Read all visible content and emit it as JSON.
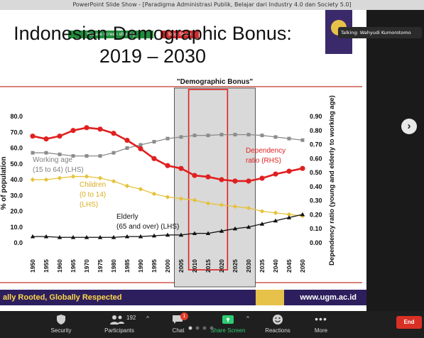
{
  "window": {
    "title": "PowerPoint Slide Show - [Paradigma Administrasi Publik, Belajar dari Industry 4.0 dan Society 5.0]"
  },
  "share": {
    "banner": "You are screen sharing",
    "stop_label": "Stop Share"
  },
  "slide": {
    "title_line1": "Indonesian Demographic Bonus:",
    "title_line2": "2019 – 2030",
    "footer_left": "ally Rooted, Globally Respected",
    "footer_right": "www.ugm.ac.id"
  },
  "talking": {
    "label": "Talking: Wahyudi Kumorotomo"
  },
  "chart_data": {
    "type": "line",
    "highlight_label": "\"Demographic Bonus\"",
    "x": [
      1950,
      1955,
      1960,
      1965,
      1970,
      1975,
      1980,
      1985,
      1990,
      1995,
      2000,
      2005,
      2010,
      2015,
      2020,
      2025,
      2030,
      2035,
      2040,
      2045,
      2050
    ],
    "x_tick_labels": [
      "1950",
      "1955",
      "1960",
      "1965",
      "1970",
      "1975",
      "1980",
      "1985",
      "1990",
      "1995",
      "2000",
      "2005",
      "2010",
      "2015",
      "2020",
      "2025",
      "2030",
      "2035",
      "2040",
      "2045",
      "2050"
    ],
    "ylim_left": [
      0,
      80
    ],
    "y_ticks_left": [
      "0.0",
      "10.0",
      "20.0",
      "30.0",
      "40.0",
      "50.0",
      "60.0",
      "70.0",
      "80.0"
    ],
    "ylabel_left": "% of population",
    "ylim_right": [
      0,
      0.9
    ],
    "y_ticks_right": [
      "0.00",
      "0.10",
      "0.20",
      "0.30",
      "0.40",
      "0.50",
      "0.60",
      "0.70",
      "0.80",
      "0.90"
    ],
    "ylabel_right": "Dependency ratio (young and elderly to working age)",
    "series": [
      {
        "name_line1": "Working age",
        "name_line2": "(15 to 64) (LHS)",
        "axis": "left",
        "color": "#8c8c8c",
        "values": [
          57,
          57,
          56,
          55,
          55,
          55,
          57,
          60,
          62,
          64,
          66,
          67,
          68,
          68,
          68.5,
          68.5,
          68.5,
          68,
          67,
          66,
          65
        ]
      },
      {
        "name_line1": "Children",
        "name_line2": "(0 to 14)",
        "name_line3": "(LHS)",
        "axis": "left",
        "color": "#e6c23a",
        "values": [
          40,
          40,
          41,
          42,
          42,
          41,
          39,
          36,
          34,
          31,
          29,
          28,
          27,
          25,
          24,
          23,
          22,
          20,
          19,
          18,
          17
        ]
      },
      {
        "name_line1": "Elderly",
        "name_line2": "(65 and over) (LHS)",
        "axis": "left",
        "color": "#111111",
        "values": [
          4,
          4,
          3.5,
          3.5,
          3.5,
          3.5,
          3.5,
          4,
          4,
          4.5,
          5,
          5,
          6,
          6,
          7.5,
          9,
          10,
          12,
          14,
          16,
          18
        ]
      },
      {
        "name_line1": "Dependency",
        "name_line2": "ratio (RHS)",
        "axis": "right",
        "color": "#e02020",
        "values": [
          0.76,
          0.74,
          0.76,
          0.8,
          0.82,
          0.81,
          0.78,
          0.73,
          0.67,
          0.6,
          0.55,
          0.53,
          0.48,
          0.47,
          0.45,
          0.44,
          0.44,
          0.46,
          0.49,
          0.51,
          0.53
        ]
      }
    ]
  },
  "toolbar": {
    "security": "Security",
    "participants": "Participants",
    "participants_count": "192",
    "chat": "Chat",
    "chat_badge": "1",
    "share": "Share Screen",
    "reactions": "Reactions",
    "more": "More",
    "end": "End"
  },
  "colors": {
    "accent_purple": "#2d1f5e",
    "accent_gold": "#e6c24a",
    "zoom_green": "#2ecc71",
    "end_red": "#d93025"
  }
}
